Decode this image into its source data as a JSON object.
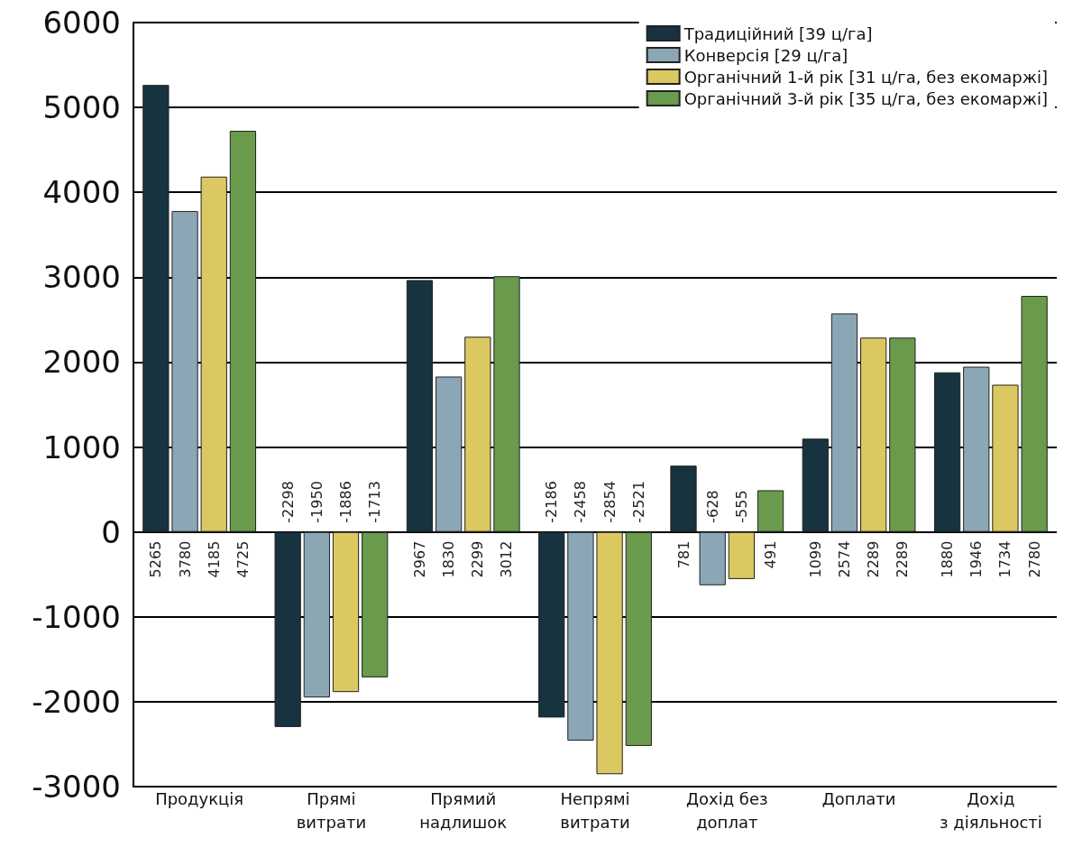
{
  "chart_data": {
    "type": "bar",
    "categories": [
      "Продукція",
      "Прямі\nвитрати",
      "Прямий\nнадлишок",
      "Непрямі\nвитрати",
      "Дохід без\nдоплат",
      "Доплати",
      "Дохід\nз діяльності"
    ],
    "series": [
      {
        "name": "Традиційний [39 ц/га]",
        "color": "#17333f",
        "values": [
          5265,
          -2298,
          2967,
          -2186,
          781,
          1099,
          1880
        ]
      },
      {
        "name": "Конверсія [29 ц/га]",
        "color": "#8ba7b5",
        "values": [
          3780,
          -1950,
          1830,
          -2458,
          -628,
          2574,
          1946
        ]
      },
      {
        "name": "Органічний 1-й рік [31 ц/га, без екомаржі]",
        "color": "#dcc860",
        "values": [
          4185,
          -1886,
          2299,
          -2854,
          -555,
          2289,
          1734
        ]
      },
      {
        "name": "Органічний 3-й рік [35 ц/га, без екомаржі]",
        "color": "#6a9a4c",
        "values": [
          4725,
          -1713,
          3012,
          -2521,
          491,
          2289,
          2780
        ]
      }
    ],
    "ylim": [
      -3000,
      6000
    ],
    "yticks": [
      -3000,
      -2000,
      -1000,
      0,
      1000,
      2000,
      3000,
      4000,
      5000,
      6000
    ],
    "grid": "y",
    "legend": "top right",
    "data_labels": true
  }
}
